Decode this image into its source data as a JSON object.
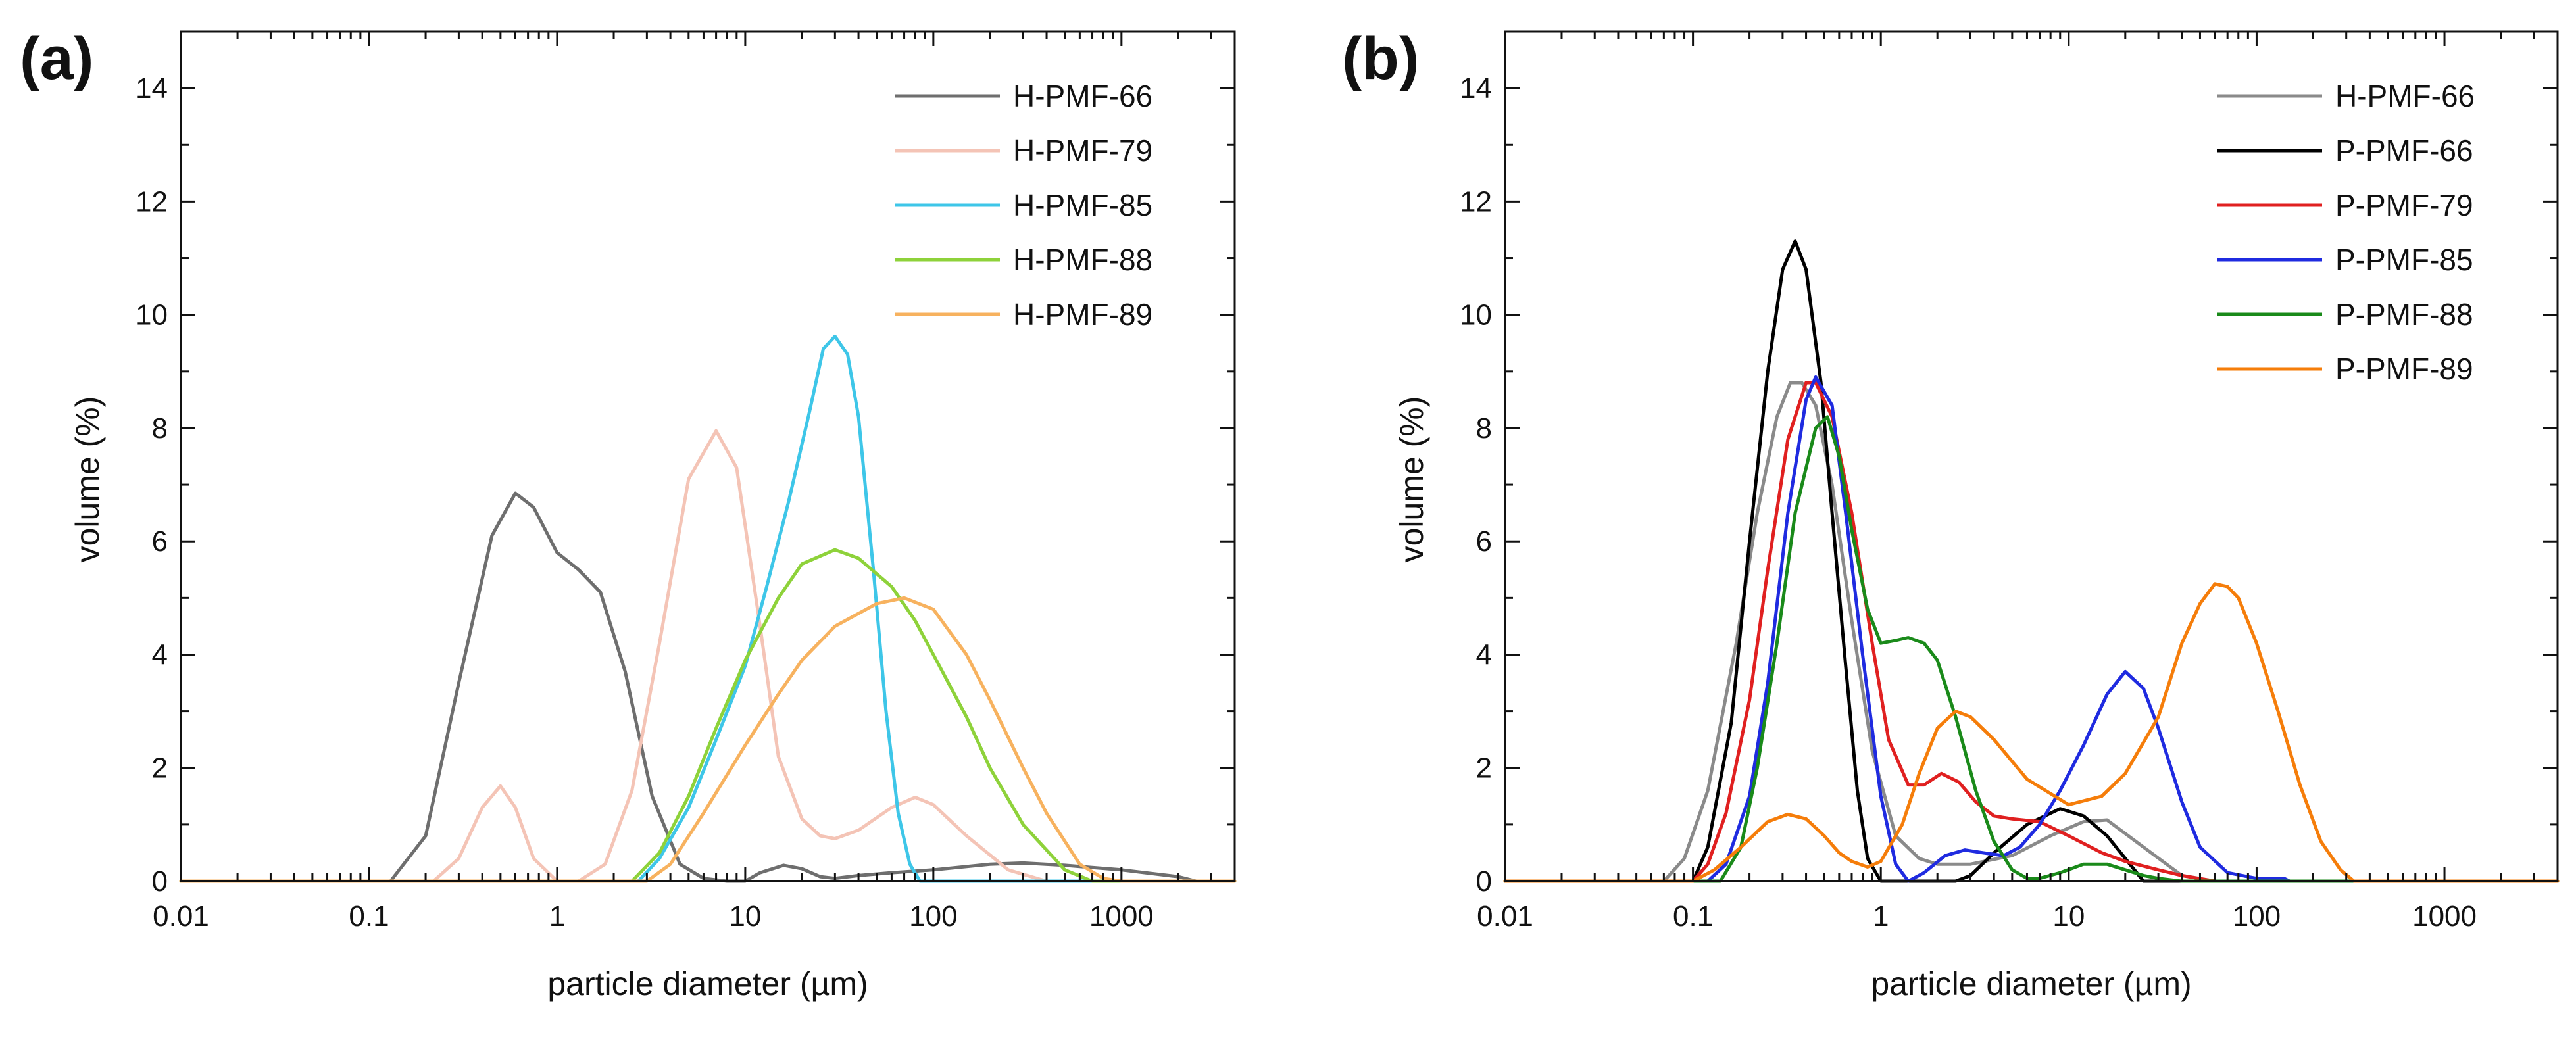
{
  "chart_data": [
    {
      "panel": "(a)",
      "type": "line",
      "xscale": "log",
      "xlabel": "particle diameter (µm)",
      "ylabel": "volume (%)",
      "xlim": [
        0.01,
        4000
      ],
      "ylim": [
        0,
        15
      ],
      "xticks": [
        0.01,
        0.1,
        1,
        10,
        100,
        1000
      ],
      "xtick_labels": [
        "0.01",
        "0.1",
        "1",
        "10",
        "100",
        "1000"
      ],
      "yticks": [
        0,
        2,
        4,
        6,
        8,
        10,
        12,
        14
      ],
      "ytick_labels": [
        "0",
        "2",
        "4",
        "6",
        "8",
        "10",
        "12",
        "14"
      ],
      "legend_position": "top-right",
      "series": [
        {
          "name": "H-PMF-66",
          "color": "#6e6e6e",
          "x": [
            0.01,
            0.13,
            0.2,
            0.3,
            0.45,
            0.6,
            0.75,
            1.0,
            1.3,
            1.7,
            2.3,
            3.2,
            4.5,
            6,
            8,
            10,
            12,
            16,
            20,
            25,
            30,
            40,
            60,
            100,
            200,
            300,
            500,
            1000,
            2000,
            2500
          ],
          "y": [
            0,
            0,
            0.8,
            3.5,
            6.1,
            6.85,
            6.6,
            5.8,
            5.5,
            5.1,
            3.7,
            1.5,
            0.3,
            0.05,
            0,
            0,
            0.15,
            0.28,
            0.22,
            0.08,
            0.05,
            0.1,
            0.15,
            0.2,
            0.3,
            0.32,
            0.28,
            0.2,
            0.08,
            0
          ]
        },
        {
          "name": "H-PMF-79",
          "color": "#f4c4b6",
          "x": [
            0.01,
            0.22,
            0.3,
            0.4,
            0.5,
            0.6,
            0.75,
            1.0,
            1.3,
            1.8,
            2.5,
            3.5,
            5,
            7,
            9,
            12,
            15,
            20,
            25,
            30,
            40,
            60,
            80,
            100,
            150,
            250,
            400,
            700,
            1000,
            4000
          ],
          "y": [
            0,
            0,
            0.4,
            1.3,
            1.68,
            1.3,
            0.4,
            0,
            0,
            0.3,
            1.6,
            4.2,
            7.1,
            7.95,
            7.3,
            4.5,
            2.2,
            1.1,
            0.8,
            0.75,
            0.9,
            1.3,
            1.48,
            1.35,
            0.8,
            0.2,
            0,
            0,
            0,
            0
          ]
        },
        {
          "name": "H-PMF-85",
          "color": "#3ec6e8",
          "x": [
            0.01,
            2.7,
            3.5,
            5,
            7,
            10,
            13,
            17,
            22,
            26,
            30,
            35,
            40,
            48,
            56,
            65,
            75,
            85,
            100,
            4000
          ],
          "y": [
            0,
            0,
            0.4,
            1.3,
            2.5,
            3.8,
            5.2,
            6.7,
            8.3,
            9.4,
            9.62,
            9.3,
            8.2,
            5.5,
            3.0,
            1.2,
            0.3,
            0,
            0,
            0
          ]
        },
        {
          "name": "H-PMF-88",
          "color": "#8ed23a",
          "x": [
            0.01,
            2.5,
            3.5,
            5,
            7,
            10,
            15,
            20,
            30,
            40,
            60,
            80,
            100,
            150,
            200,
            300,
            500,
            700,
            4000
          ],
          "y": [
            0,
            0,
            0.5,
            1.5,
            2.7,
            3.9,
            5.0,
            5.6,
            5.85,
            5.7,
            5.2,
            4.6,
            4.0,
            2.9,
            2.0,
            1.0,
            0.2,
            0,
            0
          ]
        },
        {
          "name": "H-PMF-89",
          "color": "#f7b25f",
          "x": [
            0.01,
            3,
            4,
            6,
            10,
            15,
            20,
            30,
            50,
            70,
            100,
            150,
            200,
            300,
            400,
            600,
            800,
            1000,
            4000
          ],
          "y": [
            0,
            0,
            0.3,
            1.2,
            2.4,
            3.3,
            3.9,
            4.5,
            4.9,
            5.0,
            4.8,
            4.0,
            3.2,
            2.0,
            1.2,
            0.3,
            0.05,
            0,
            0
          ]
        }
      ]
    },
    {
      "panel": "(b)",
      "type": "line",
      "xscale": "log",
      "xlabel": "particle diameter (µm)",
      "ylabel": "volume (%)",
      "xlim": [
        0.01,
        4000
      ],
      "ylim": [
        0,
        15
      ],
      "xticks": [
        0.01,
        0.1,
        1,
        10,
        100,
        1000
      ],
      "xtick_labels": [
        "0.01",
        "0.1",
        "1",
        "10",
        "100",
        "1000"
      ],
      "yticks": [
        0,
        2,
        4,
        6,
        8,
        10,
        12,
        14
      ],
      "ytick_labels": [
        "0",
        "2",
        "4",
        "6",
        "8",
        "10",
        "12",
        "14"
      ],
      "legend_position": "top-right",
      "series": [
        {
          "name": "H-PMF-66",
          "color": "#8a8a8a",
          "x": [
            0.01,
            0.07,
            0.09,
            0.12,
            0.17,
            0.22,
            0.28,
            0.33,
            0.38,
            0.45,
            0.55,
            0.7,
            0.9,
            1.2,
            1.6,
            2,
            3,
            5,
            8,
            12,
            16,
            25,
            40,
            60,
            4000
          ],
          "y": [
            0,
            0,
            0.4,
            1.6,
            4.2,
            6.5,
            8.2,
            8.8,
            8.8,
            8.4,
            7.0,
            4.6,
            2.3,
            0.8,
            0.4,
            0.3,
            0.3,
            0.45,
            0.8,
            1.05,
            1.08,
            0.6,
            0.1,
            0,
            0
          ]
        },
        {
          "name": "P-PMF-66",
          "color": "#000000",
          "x": [
            0.01,
            0.1,
            0.12,
            0.16,
            0.2,
            0.25,
            0.3,
            0.35,
            0.4,
            0.48,
            0.55,
            0.65,
            0.75,
            0.85,
            1.0,
            1.1,
            2.5,
            3,
            4,
            6,
            9,
            12,
            16,
            20,
            25,
            4000
          ],
          "y": [
            0,
            0,
            0.6,
            2.8,
            6.0,
            9.0,
            10.8,
            11.3,
            10.8,
            8.8,
            6.5,
            3.8,
            1.6,
            0.4,
            0,
            0,
            0,
            0.1,
            0.5,
            1.0,
            1.28,
            1.15,
            0.8,
            0.4,
            0,
            0
          ]
        },
        {
          "name": "P-PMF-79",
          "color": "#e02020",
          "x": [
            0.01,
            0.1,
            0.12,
            0.15,
            0.2,
            0.25,
            0.32,
            0.4,
            0.45,
            0.55,
            0.7,
            0.9,
            1.1,
            1.4,
            1.7,
            2.1,
            2.6,
            3.2,
            4,
            5,
            7,
            10,
            15,
            20,
            30,
            40,
            60,
            4000
          ],
          "y": [
            0,
            0,
            0.3,
            1.2,
            3.2,
            5.5,
            7.8,
            8.8,
            8.8,
            8.2,
            6.5,
            4.2,
            2.5,
            1.7,
            1.7,
            1.9,
            1.75,
            1.4,
            1.15,
            1.1,
            1.05,
            0.8,
            0.5,
            0.35,
            0.2,
            0.1,
            0,
            0
          ]
        },
        {
          "name": "P-PMF-85",
          "color": "#1f2be0",
          "x": [
            0.01,
            0.12,
            0.15,
            0.2,
            0.25,
            0.32,
            0.4,
            0.45,
            0.55,
            0.65,
            0.8,
            1.0,
            1.2,
            1.4,
            1.7,
            2.2,
            2.8,
            3.5,
            4.5,
            5.5,
            7,
            9,
            12,
            16,
            20,
            25,
            30,
            40,
            50,
            70,
            100,
            140,
            150,
            4000
          ],
          "y": [
            0,
            0,
            0.3,
            1.5,
            3.5,
            6.5,
            8.5,
            8.9,
            8.4,
            6.5,
            4.0,
            1.5,
            0.3,
            0,
            0.15,
            0.45,
            0.55,
            0.5,
            0.45,
            0.6,
            1.0,
            1.6,
            2.4,
            3.3,
            3.7,
            3.4,
            2.7,
            1.4,
            0.6,
            0.15,
            0.05,
            0.05,
            0,
            0
          ]
        },
        {
          "name": "P-PMF-88",
          "color": "#1a8a1a",
          "x": [
            0.01,
            0.14,
            0.18,
            0.22,
            0.28,
            0.35,
            0.45,
            0.52,
            0.6,
            0.7,
            0.85,
            1.0,
            1.2,
            1.4,
            1.7,
            2.0,
            2.5,
            3.2,
            4,
            5,
            6,
            7,
            9,
            12,
            16,
            20,
            25,
            30,
            40,
            4000
          ],
          "y": [
            0,
            0,
            0.6,
            2.0,
            4.2,
            6.5,
            8.0,
            8.2,
            7.5,
            6.2,
            4.8,
            4.2,
            4.25,
            4.3,
            4.2,
            3.9,
            2.9,
            1.6,
            0.7,
            0.2,
            0.05,
            0.05,
            0.15,
            0.3,
            0.3,
            0.2,
            0.1,
            0.05,
            0,
            0
          ]
        },
        {
          "name": "P-PMF-89",
          "color": "#f57d0a",
          "x": [
            0.01,
            0.1,
            0.13,
            0.18,
            0.25,
            0.32,
            0.4,
            0.5,
            0.6,
            0.7,
            0.85,
            1.0,
            1.3,
            1.6,
            2.0,
            2.5,
            3,
            4,
            6,
            10,
            15,
            20,
            30,
            40,
            50,
            60,
            70,
            80,
            100,
            130,
            170,
            220,
            280,
            330,
            4000
          ],
          "y": [
            0,
            0,
            0.2,
            0.6,
            1.05,
            1.18,
            1.1,
            0.8,
            0.5,
            0.35,
            0.25,
            0.35,
            1.0,
            1.9,
            2.7,
            3.0,
            2.9,
            2.5,
            1.8,
            1.35,
            1.5,
            1.9,
            2.9,
            4.2,
            4.9,
            5.25,
            5.2,
            5.0,
            4.2,
            3.0,
            1.7,
            0.7,
            0.2,
            0,
            0
          ]
        }
      ]
    }
  ]
}
